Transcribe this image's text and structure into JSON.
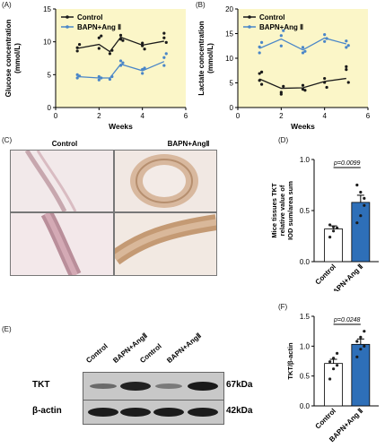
{
  "panel_labels": {
    "a": "(A)",
    "b": "(B)",
    "c": "(C)",
    "d": "(D)",
    "e": "(E)",
    "f": "(F)"
  },
  "colors": {
    "control": "#1a1a1a",
    "treat": "#4a86c8",
    "bg_yellow": "#fbf6c8",
    "bar_blue": "#2e6fb8"
  },
  "chart_data": [
    {
      "type": "line",
      "panel": "A",
      "ylabel_line1": "Glucose concentration",
      "ylabel_line2": "(mmol/L)",
      "xlabel": "Weeks",
      "xlim": [
        0,
        6
      ],
      "ylim": [
        0,
        15
      ],
      "xticks": [
        "0",
        "2",
        "4",
        "6"
      ],
      "yticks": [
        "0",
        "5",
        "10",
        "15"
      ],
      "legend": [
        "Control",
        "BAPN+Ang Ⅱ"
      ],
      "series": [
        {
          "name": "Control",
          "x": [
            1,
            2,
            2.5,
            3,
            4,
            5
          ],
          "values": [
            9,
            9.6,
            8.5,
            10.7,
            9.5,
            10.1
          ],
          "points": [
            [
              1,
              8.6
            ],
            [
              1,
              9.1
            ],
            [
              1.1,
              9.6
            ],
            [
              2,
              10.6
            ],
            [
              2.1,
              10.9
            ],
            [
              2,
              9
            ],
            [
              2.5,
              8.2
            ],
            [
              2.6,
              8.7
            ],
            [
              3,
              10.4
            ],
            [
              3,
              11
            ],
            [
              3.1,
              10.2
            ],
            [
              4,
              9.4
            ],
            [
              4,
              9.8
            ],
            [
              4.1,
              8.9
            ],
            [
              5,
              10.6
            ],
            [
              5,
              11.3
            ],
            [
              5.1,
              9.9
            ]
          ]
        },
        {
          "name": "BAPN+Ang Ⅱ",
          "x": [
            1,
            2,
            2.5,
            3,
            4,
            5
          ],
          "values": [
            4.7,
            4.5,
            4.5,
            6.6,
            5.6,
            7
          ],
          "points": [
            [
              1,
              5
            ],
            [
              1,
              4.5
            ],
            [
              1.1,
              4.8
            ],
            [
              2,
              4.2
            ],
            [
              2,
              4.7
            ],
            [
              2.1,
              4.5
            ],
            [
              2.5,
              4.3
            ],
            [
              2.6,
              4.7
            ],
            [
              3,
              6.4
            ],
            [
              3,
              7.1
            ],
            [
              3.1,
              6.8
            ],
            [
              4,
              5.2
            ],
            [
              4,
              5.8
            ],
            [
              4.1,
              6
            ],
            [
              5,
              7.6
            ],
            [
              5,
              6.4
            ],
            [
              5.1,
              8.2
            ]
          ]
        }
      ]
    },
    {
      "type": "line",
      "panel": "B",
      "ylabel_line1": "Lactate concentration",
      "ylabel_line2": "(mmol/L)",
      "xlabel": "Weeks",
      "xlim": [
        0,
        6
      ],
      "ylim": [
        0,
        20
      ],
      "xticks": [
        "0",
        "2",
        "4",
        "6"
      ],
      "yticks": [
        "0",
        "5",
        "10",
        "15",
        "20"
      ],
      "legend": [
        "Control",
        "BAPN+Ang Ⅱ"
      ],
      "series": [
        {
          "name": "Control",
          "x": [
            1,
            2,
            3,
            4,
            5
          ],
          "values": [
            5.8,
            3.9,
            4,
            5.3,
            5.9
          ],
          "points": [
            [
              1,
              6.9
            ],
            [
              1.1,
              7.2
            ],
            [
              1,
              5.5
            ],
            [
              1.1,
              4.7
            ],
            [
              2,
              3.1
            ],
            [
              2,
              2.7
            ],
            [
              2.1,
              4.3
            ],
            [
              3,
              4.5
            ],
            [
              3.1,
              3.5
            ],
            [
              3,
              3.7
            ],
            [
              4,
              5.1
            ],
            [
              4,
              5.9
            ],
            [
              4.1,
              4.1
            ],
            [
              5,
              7.7
            ],
            [
              5,
              8.3
            ],
            [
              5.1,
              5.1
            ]
          ]
        },
        {
          "name": "BAPN+Ang Ⅱ",
          "x": [
            1,
            2,
            3,
            4,
            5
          ],
          "values": [
            12,
            13.9,
            11.7,
            14.1,
            12.9
          ],
          "points": [
            [
              1,
              11.1
            ],
            [
              1,
              12.3
            ],
            [
              1.1,
              13.2
            ],
            [
              2,
              12.5
            ],
            [
              2,
              14.6
            ],
            [
              2.1,
              15.6
            ],
            [
              3,
              11.1
            ],
            [
              3,
              12.2
            ],
            [
              3.1,
              11.4
            ],
            [
              4,
              13.4
            ],
            [
              4,
              14.8
            ],
            [
              4.1,
              14
            ],
            [
              5,
              12.2
            ],
            [
              5,
              13.5
            ],
            [
              5.1,
              12.6
            ]
          ]
        }
      ]
    },
    {
      "type": "bar",
      "panel": "D",
      "ylabel_line1": "Mice tissues TKT",
      "ylabel_line2": "relative value of",
      "ylabel_line3": "IOD sum/area sum",
      "categories": [
        "Control",
        "BAPN+Ang Ⅱ"
      ],
      "values": [
        0.32,
        0.58
      ],
      "errors": [
        0.03,
        0.07
      ],
      "ylim": [
        0,
        1.0
      ],
      "yticks": [
        "0.0",
        "0.5",
        "1.0"
      ],
      "points": [
        [
          0.24,
          0.3,
          0.33,
          0.36,
          0.34
        ],
        [
          0.38,
          0.45,
          0.62,
          0.75,
          0.68,
          0.55
        ]
      ],
      "annotation": "p=0.0099"
    },
    {
      "type": "bar",
      "panel": "F",
      "ylabel": "TKT/β-actin",
      "categories": [
        "Control",
        "BAPN+Ang Ⅱ"
      ],
      "values": [
        0.71,
        1.03
      ],
      "errors": [
        0.07,
        0.09
      ],
      "ylim": [
        0,
        1.5
      ],
      "yticks": [
        "0.0",
        "0.5",
        "1.0",
        "1.5"
      ],
      "points": [
        [
          0.45,
          0.62,
          0.68,
          0.74,
          0.8,
          0.88
        ],
        [
          0.82,
          0.95,
          1.0,
          1.08,
          1.15,
          1.25
        ]
      ],
      "annotation": "p=0.0248"
    }
  ],
  "panel_c": {
    "col_control": "Control",
    "col_treat": "BAPN+AngⅡ"
  },
  "panel_e": {
    "lanes": [
      "Control",
      "BAPN+AngⅡ",
      "Control",
      "BAPN+AngⅡ"
    ],
    "rows": [
      {
        "label": "TKT",
        "kda": "67kDa"
      },
      {
        "label": "β-actin",
        "kda": "42kDa"
      }
    ]
  }
}
